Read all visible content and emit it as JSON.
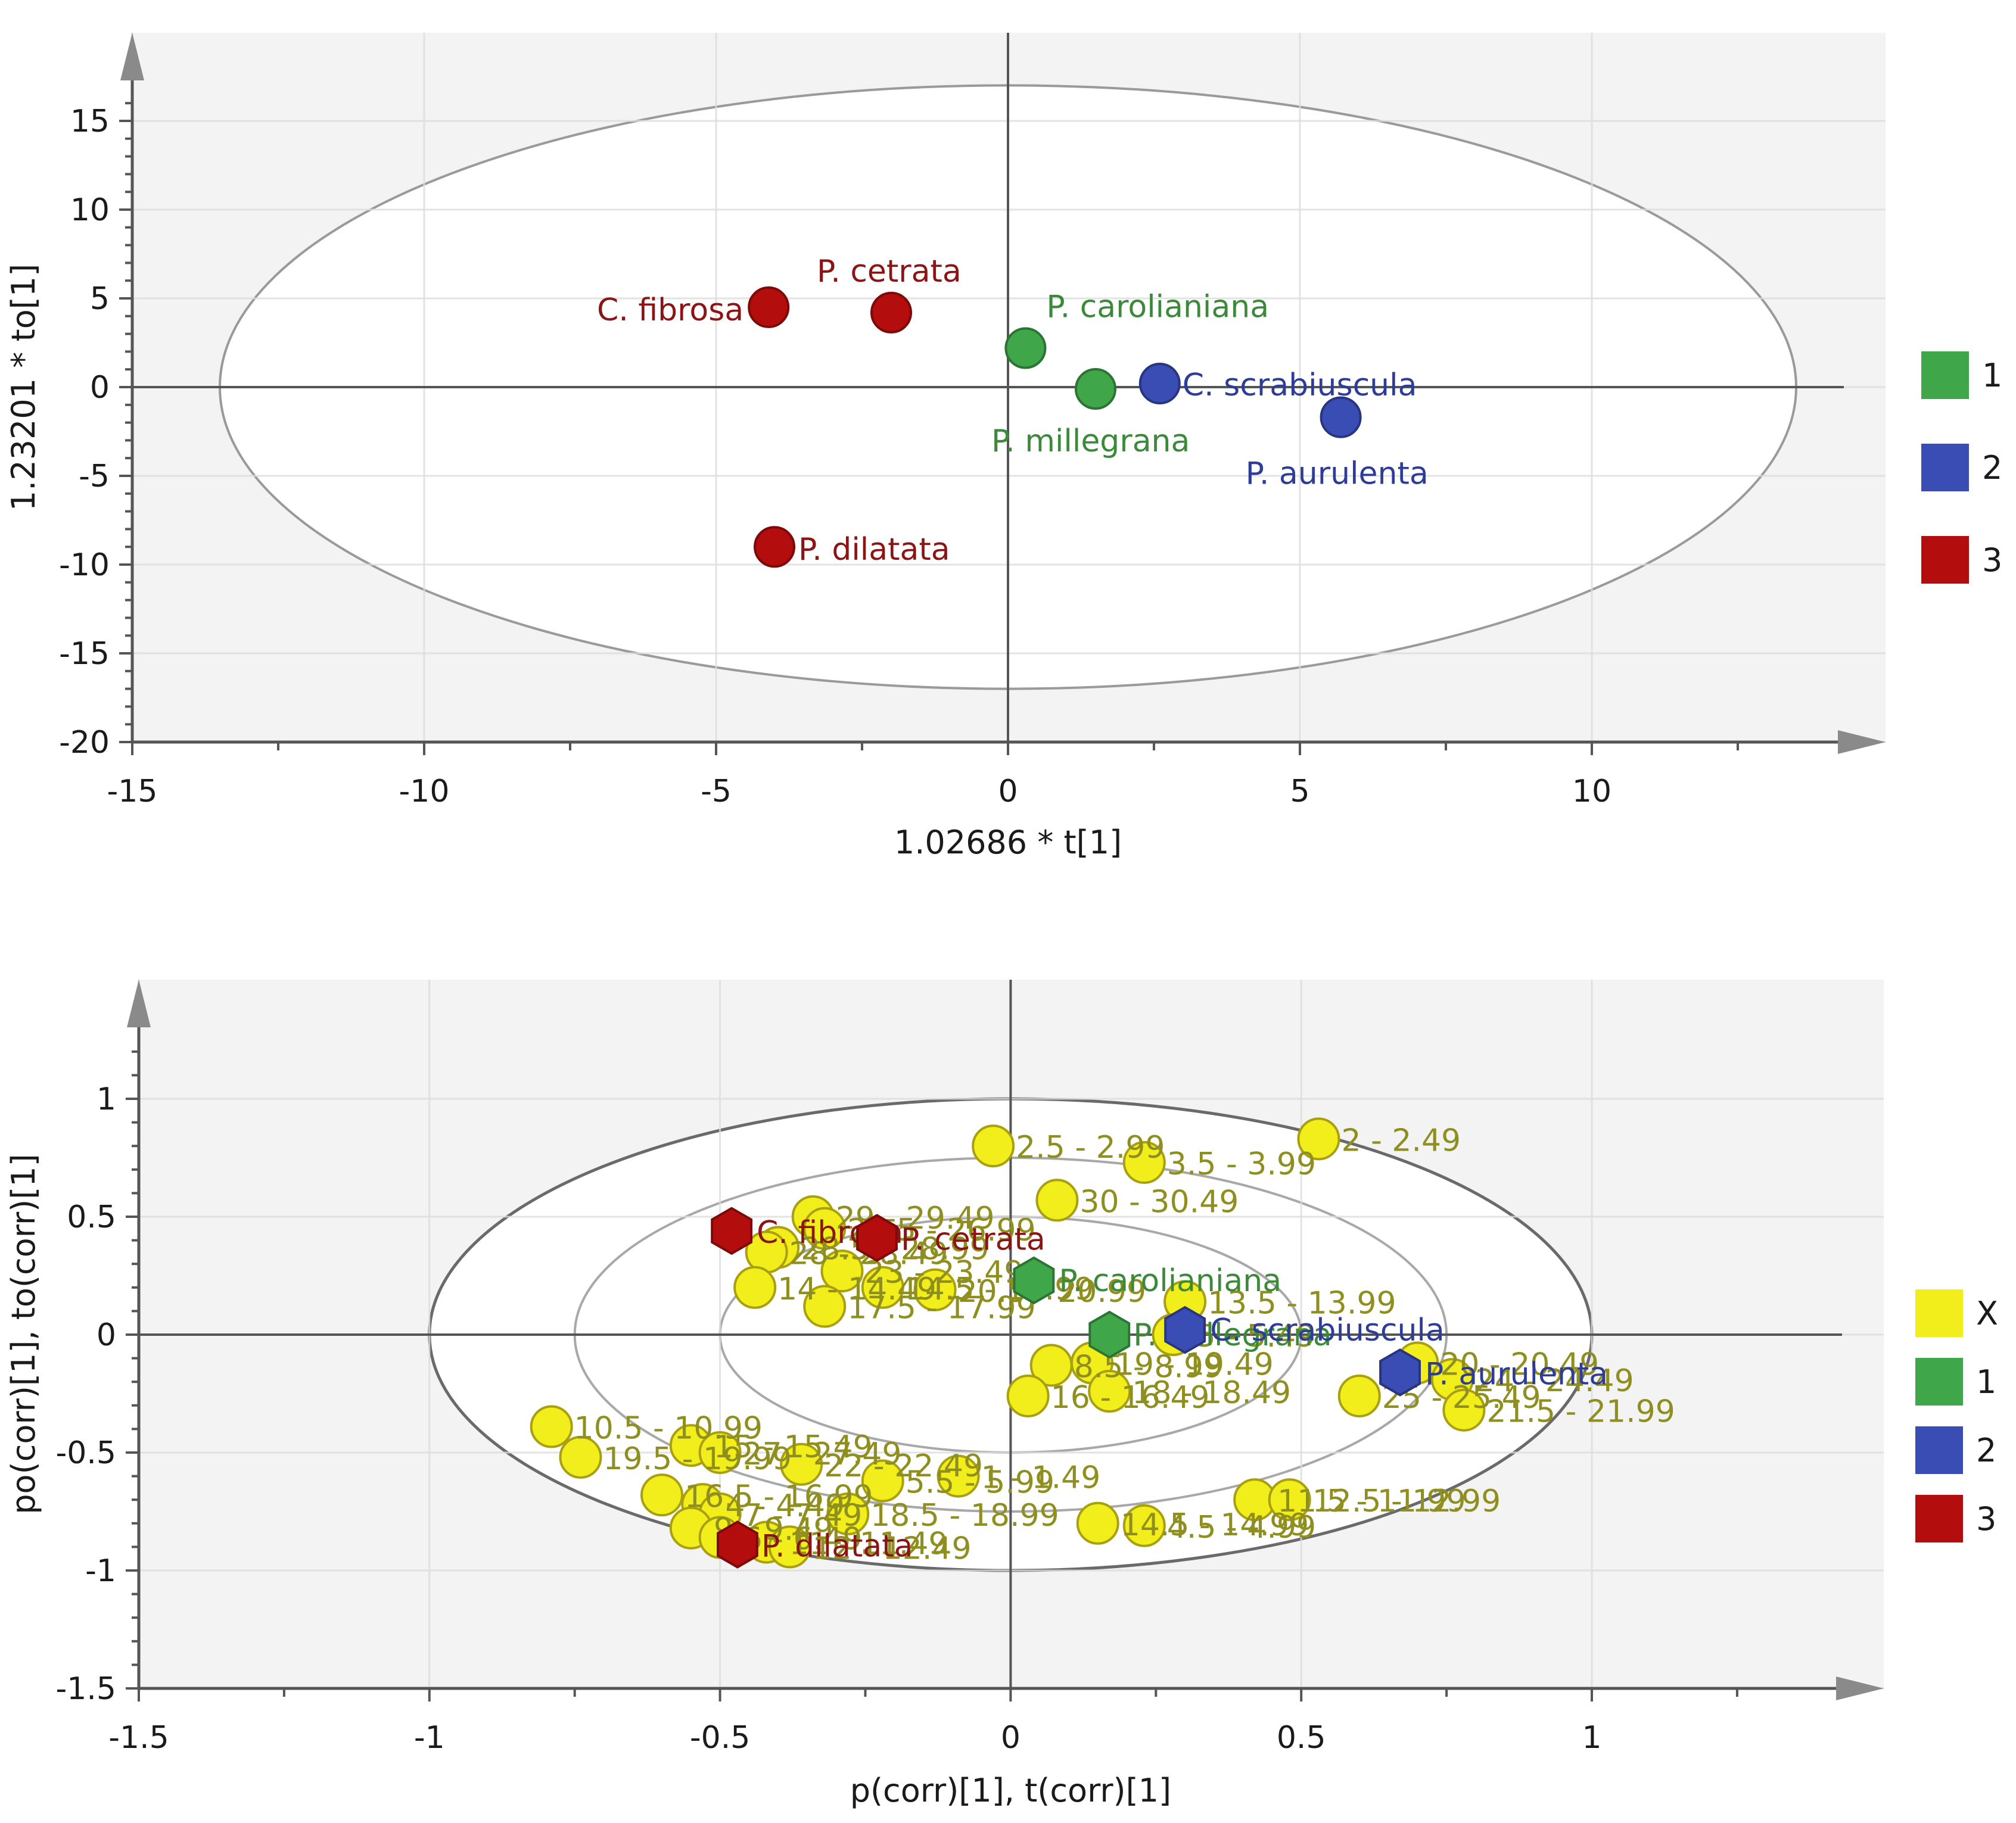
{
  "chart_data": [
    {
      "type": "scatter",
      "xlabel": "1.02686 * t[1]",
      "ylabel": "1.23201 * to[1]",
      "xlim": [
        -15,
        15
      ],
      "ylim": [
        -20,
        20
      ],
      "x_ticks": [
        -15,
        -10,
        -5,
        0,
        5,
        10
      ],
      "y_ticks": [
        -20,
        -15,
        -10,
        -5,
        0,
        5,
        10,
        15
      ],
      "x_tick_labels": [
        "-15",
        "-10",
        "-5",
        "0",
        "5",
        "10"
      ],
      "y_tick_labels": [
        "-20",
        "-15",
        "-10",
        "-5",
        "0",
        "5",
        "10",
        "15"
      ],
      "grid": true,
      "ellipse": {
        "rx": 13.5,
        "ry": 17
      },
      "legend": {
        "placement": "right",
        "entries": [
          {
            "label": "1",
            "color": "#3fa64a"
          },
          {
            "label": "2",
            "color": "#3a4db5"
          },
          {
            "label": "3",
            "color": "#b30d0d"
          }
        ]
      },
      "series": [
        {
          "group": "1",
          "color": "#3fa64a",
          "label_color": "#3a8a3a",
          "points": [
            {
              "label": "P. carolianiana",
              "x": 0.3,
              "y": 2.2
            },
            {
              "label": "P. millegrana",
              "x": 1.5,
              "y": -0.1
            }
          ]
        },
        {
          "group": "2",
          "color": "#3a4db5",
          "label_color": "#2e3c99",
          "points": [
            {
              "label": "C. scrabiuscula",
              "x": 2.6,
              "y": 0.2
            },
            {
              "label": "P. aurulenta",
              "x": 5.7,
              "y": -1.7
            }
          ]
        },
        {
          "group": "3",
          "color": "#b30d0d",
          "label_color": "#8b1414",
          "points": [
            {
              "label": "C. fibrosa",
              "x": -4.1,
              "y": 4.5
            },
            {
              "label": "P. cetrata",
              "x": -2.0,
              "y": 4.2
            },
            {
              "label": "P. dilatata",
              "x": -4.0,
              "y": -9.0
            }
          ]
        }
      ]
    },
    {
      "type": "scatter",
      "xlabel": "p(corr)[1], t(corr)[1]",
      "ylabel": "po(corr)[1], to(corr)[1]",
      "xlim": [
        -1.5,
        1.5
      ],
      "ylim": [
        -1.5,
        1.5
      ],
      "x_ticks": [
        -1.5,
        -1,
        -0.5,
        0,
        0.5,
        1
      ],
      "y_ticks": [
        -1.5,
        -1,
        -0.5,
        0,
        0.5,
        1
      ],
      "x_tick_labels": [
        "-1.5",
        "-1",
        "-0.5",
        "0",
        "0.5",
        "1"
      ],
      "y_tick_labels": [
        "-1.5",
        "-1",
        "-0.5",
        "0",
        "0.5",
        "1"
      ],
      "grid": true,
      "ellipses": [
        {
          "rx": 1.0,
          "ry": 1.0
        },
        {
          "rx": 0.75,
          "ry": 0.75
        },
        {
          "rx": 0.5,
          "ry": 0.5
        }
      ],
      "legend": {
        "placement": "right",
        "entries": [
          {
            "label": "X",
            "color": "#f2ee1b"
          },
          {
            "label": "1",
            "color": "#3fa64a"
          },
          {
            "label": "2",
            "color": "#3a4db5"
          },
          {
            "label": "3",
            "color": "#b30d0d"
          }
        ]
      },
      "variables": [
        {
          "label": "2 - 2.49",
          "x": 0.53,
          "y": 0.83
        },
        {
          "label": "2.5 - 2.99",
          "x": -0.03,
          "y": 0.8
        },
        {
          "label": "3.5 - 3.99",
          "x": 0.23,
          "y": 0.73
        },
        {
          "label": "30 - 30.49",
          "x": 0.08,
          "y": 0.57
        },
        {
          "label": "29 - 29.49",
          "x": -0.34,
          "y": 0.5
        },
        {
          "label": "26.5 - 26.99",
          "x": -0.32,
          "y": 0.45
        },
        {
          "label": "28.5 - 28.99",
          "x": -0.4,
          "y": 0.37
        },
        {
          "label": "28 - 28.49",
          "x": -0.42,
          "y": 0.35
        },
        {
          "label": "23 - 23.49",
          "x": -0.29,
          "y": 0.27
        },
        {
          "label": "14 - 14.49",
          "x": -0.44,
          "y": 0.2
        },
        {
          "label": "14.5 - 14.99",
          "x": -0.22,
          "y": 0.2
        },
        {
          "label": "20.5 - 20.99",
          "x": -0.13,
          "y": 0.19
        },
        {
          "label": "17.5 - 17.99",
          "x": -0.32,
          "y": 0.12
        },
        {
          "label": "13.5 - 13.99",
          "x": 0.3,
          "y": 0.14
        },
        {
          "label": "5 - 5.49",
          "x": 0.28,
          "y": 0.0
        },
        {
          "label": "8.5 - 8.99",
          "x": 0.07,
          "y": -0.13
        },
        {
          "label": "19 - 19.49",
          "x": 0.14,
          "y": -0.12
        },
        {
          "label": "16 - 16.49",
          "x": 0.03,
          "y": -0.26
        },
        {
          "label": "18 - 18.49",
          "x": 0.17,
          "y": -0.24
        },
        {
          "label": "20 - 20.49",
          "x": 0.7,
          "y": -0.12
        },
        {
          "label": "24 - 24.49",
          "x": 0.76,
          "y": -0.19
        },
        {
          "label": "25 - 25.49",
          "x": 0.6,
          "y": -0.26
        },
        {
          "label": "21.5 - 21.99",
          "x": 0.78,
          "y": -0.32
        },
        {
          "label": "10.5 - 10.99",
          "x": -0.79,
          "y": -0.39
        },
        {
          "label": "19.5 - 19.99",
          "x": -0.74,
          "y": -0.52
        },
        {
          "label": "15 - 15.49",
          "x": -0.55,
          "y": -0.47
        },
        {
          "label": "27 - 27.49",
          "x": -0.5,
          "y": -0.5
        },
        {
          "label": "22 - 22.49",
          "x": -0.36,
          "y": -0.55
        },
        {
          "label": "5.5 - 5.99",
          "x": -0.22,
          "y": -0.62
        },
        {
          "label": "1 - 1.49",
          "x": -0.09,
          "y": -0.6
        },
        {
          "label": "16.5 - 16.99",
          "x": -0.6,
          "y": -0.68
        },
        {
          "label": "4 - 4.49",
          "x": -0.53,
          "y": -0.72
        },
        {
          "label": "7 - 7.49",
          "x": -0.5,
          "y": -0.76
        },
        {
          "label": "18.5 - 18.99",
          "x": -0.28,
          "y": -0.76
        },
        {
          "label": "9 - 9.49",
          "x": -0.55,
          "y": -0.82
        },
        {
          "label": "6 - 6.49",
          "x": -0.5,
          "y": -0.86
        },
        {
          "label": "11 - 11.49",
          "x": -0.42,
          "y": -0.88
        },
        {
          "label": "12 - 12.49",
          "x": -0.38,
          "y": -0.9
        },
        {
          "label": "14.5 - 14.99",
          "x": 0.15,
          "y": -0.8
        },
        {
          "label": "4.5 - 4.99",
          "x": 0.23,
          "y": -0.81
        },
        {
          "label": "11.5 - 11.99",
          "x": 0.42,
          "y": -0.7
        },
        {
          "label": "12.5 - 12.99",
          "x": 0.48,
          "y": -0.7
        }
      ],
      "series": [
        {
          "group": "1",
          "color": "#3fa64a",
          "label_color": "#3a8a3a",
          "points": [
            {
              "label": "P. carolianiana",
              "x": 0.04,
              "y": 0.23
            },
            {
              "label": "P. millegrana",
              "x": 0.17,
              "y": 0.0
            }
          ]
        },
        {
          "group": "2",
          "color": "#3a4db5",
          "label_color": "#2e3c99",
          "points": [
            {
              "label": "C. scrabiuscula",
              "x": 0.3,
              "y": 0.02
            },
            {
              "label": "P. aurulenta",
              "x": 0.67,
              "y": -0.16
            }
          ]
        },
        {
          "group": "3",
          "color": "#b30d0d",
          "label_color": "#8b1414",
          "points": [
            {
              "label": "C. fibrosa",
              "x": -0.48,
              "y": 0.44
            },
            {
              "label": "P. cetrata",
              "x": -0.23,
              "y": 0.41
            },
            {
              "label": "P. dilatata",
              "x": -0.47,
              "y": -0.89
            }
          ]
        }
      ]
    }
  ]
}
